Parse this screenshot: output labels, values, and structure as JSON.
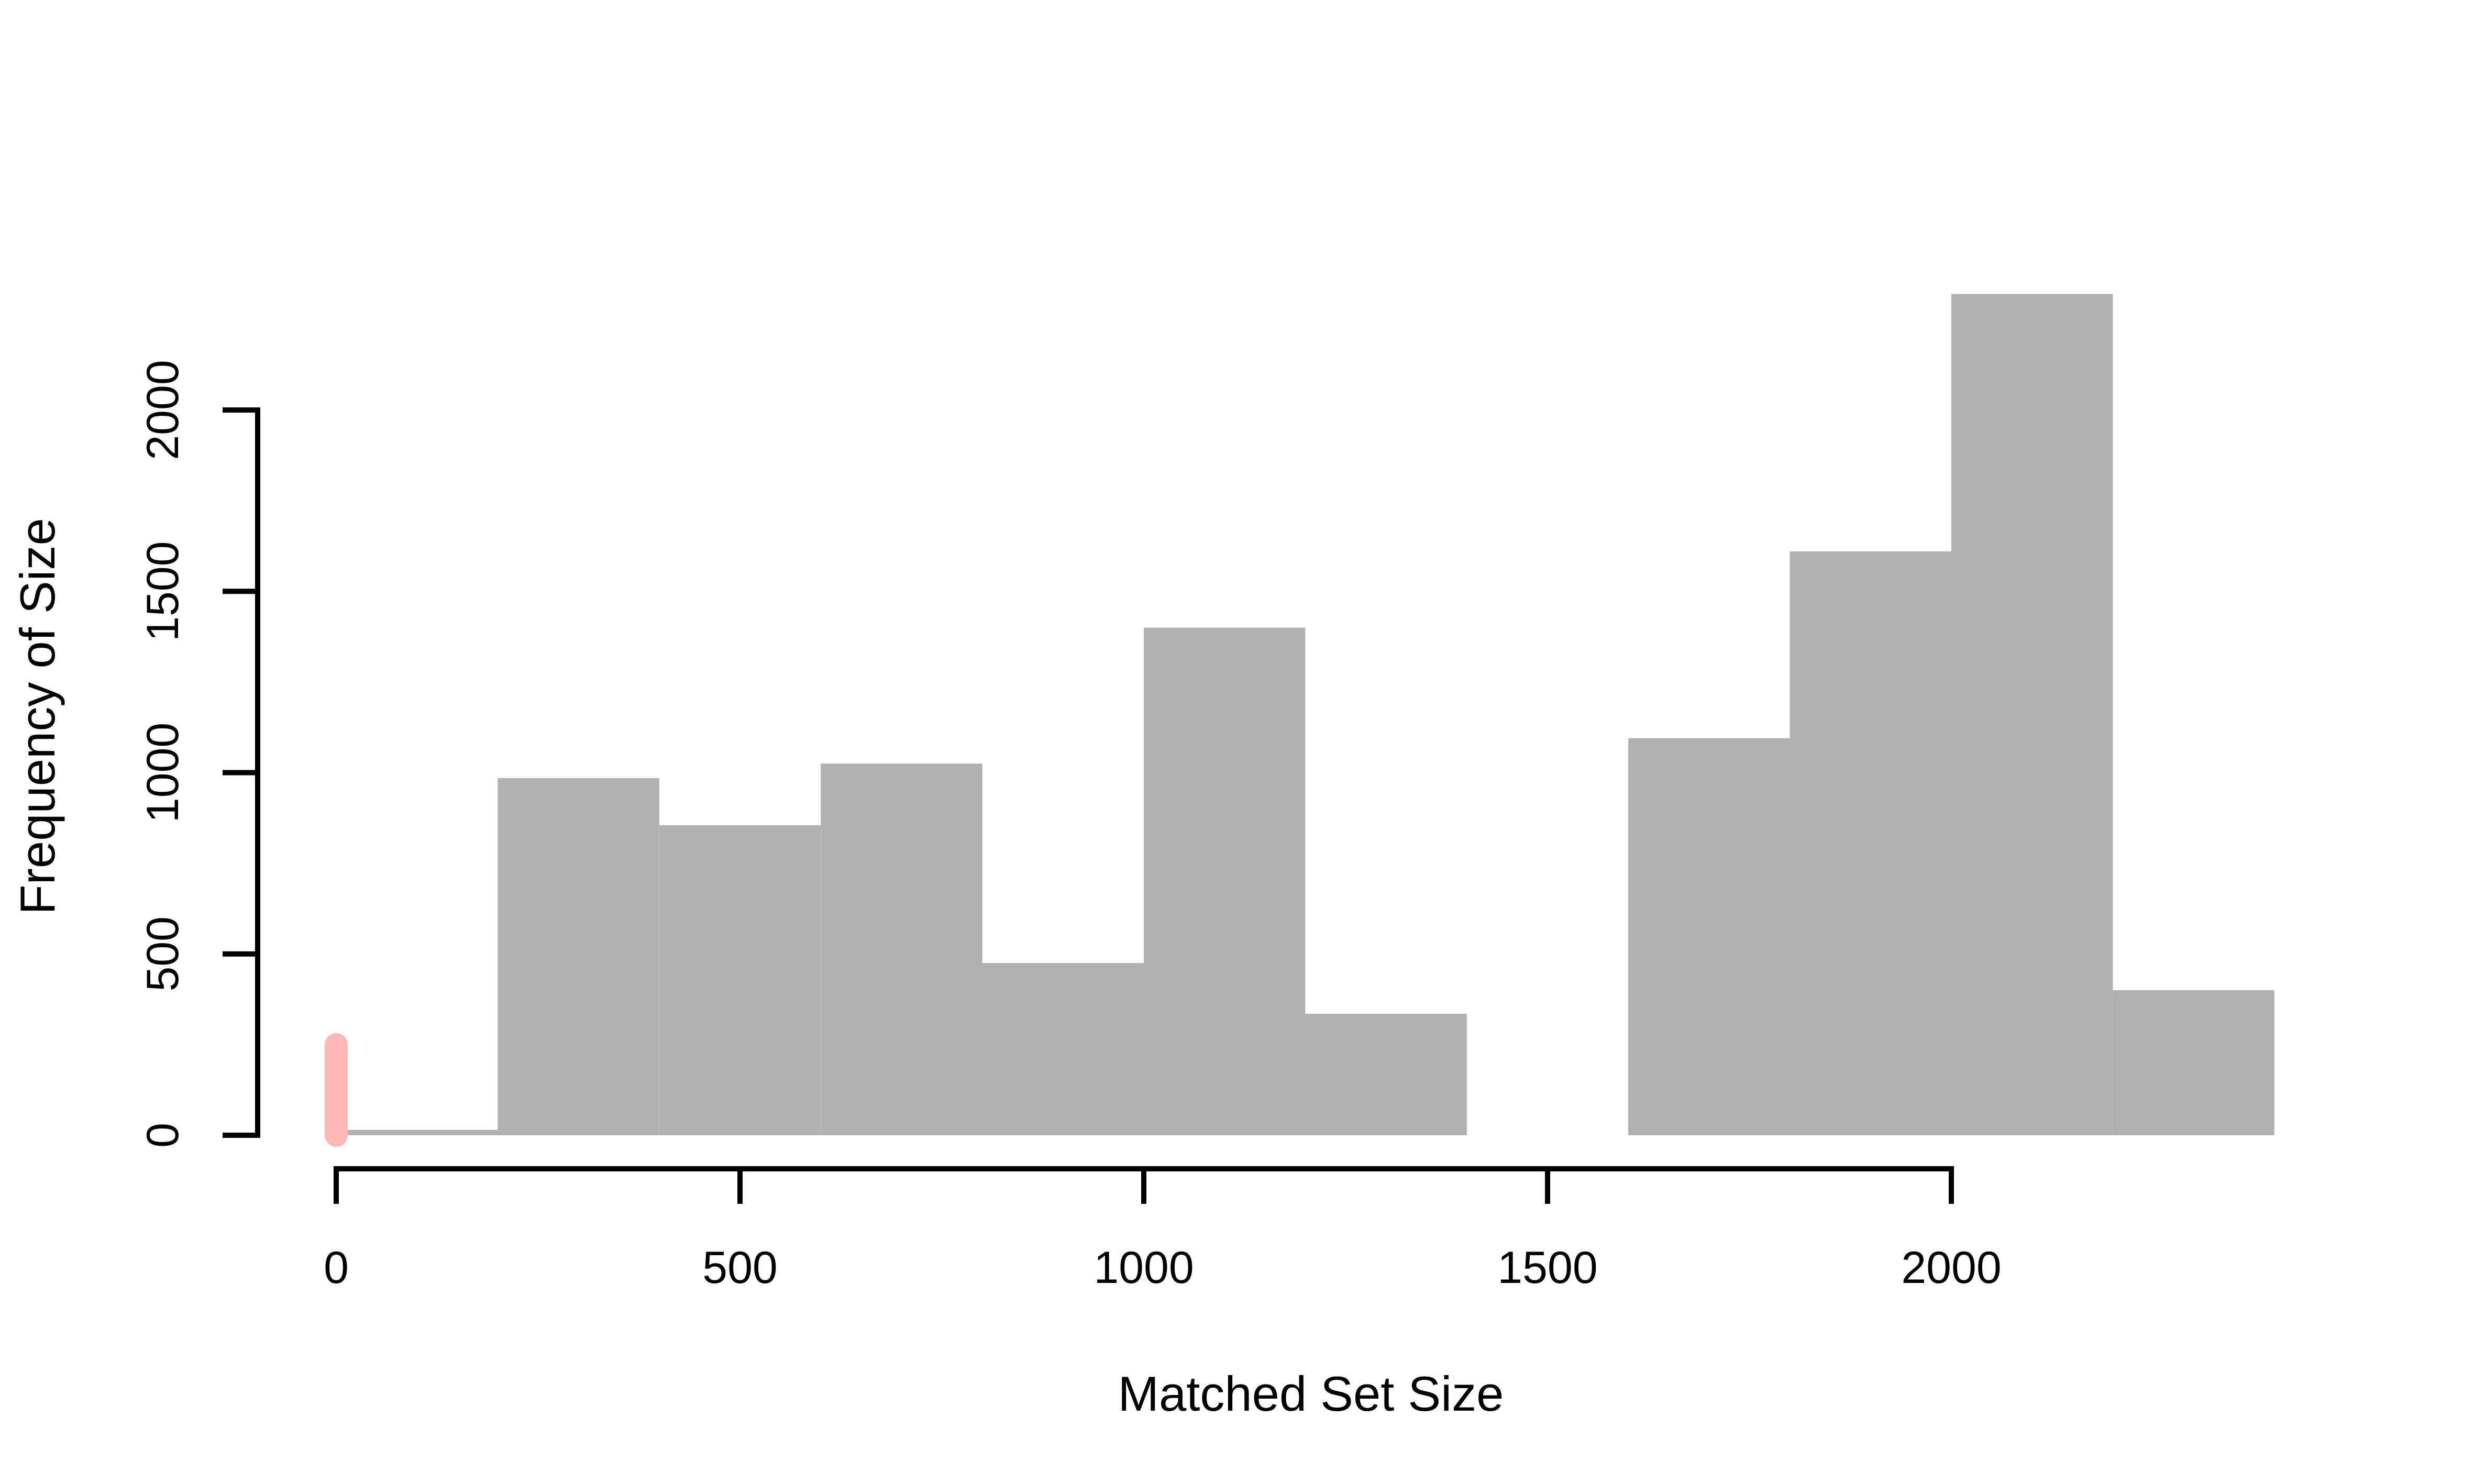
{
  "chart_data": {
    "type": "bar",
    "subtype": "histogram",
    "title": "",
    "xlabel": "Matched Set Size",
    "ylabel": "Frequency of Size",
    "xlim": [
      0,
      2400
    ],
    "ylim": [
      0,
      2300
    ],
    "x_ticks": [
      0,
      500,
      1000,
      1500,
      2000
    ],
    "x_tick_labels": [
      "0",
      "500",
      "1000",
      "1500",
      "2000"
    ],
    "y_ticks": [
      0,
      500,
      1000,
      1500,
      2000
    ],
    "y_tick_labels": [
      "0",
      "500",
      "1000",
      "1500",
      "2000"
    ],
    "bin_width": 200,
    "bins": [
      {
        "start": 0,
        "end": 200,
        "count": 15
      },
      {
        "start": 200,
        "end": 400,
        "count": 985
      },
      {
        "start": 400,
        "end": 600,
        "count": 855
      },
      {
        "start": 600,
        "end": 800,
        "count": 1025
      },
      {
        "start": 800,
        "end": 1000,
        "count": 475
      },
      {
        "start": 1000,
        "end": 1200,
        "count": 1400
      },
      {
        "start": 1200,
        "end": 1400,
        "count": 335
      },
      {
        "start": 1400,
        "end": 1600,
        "count": 0
      },
      {
        "start": 1600,
        "end": 1800,
        "count": 1095
      },
      {
        "start": 1800,
        "end": 2000,
        "count": 1610
      },
      {
        "start": 2000,
        "end": 2200,
        "count": 2320
      },
      {
        "start": 2200,
        "end": 2400,
        "count": 400
      }
    ],
    "marker": {
      "x": 0,
      "y_from": 0,
      "y_to": 250
    },
    "grid": false,
    "legend": "none"
  },
  "colors": {
    "bar_fill": "#b0b0b0",
    "marker": "#ffb6b6",
    "axis": "#000000"
  }
}
